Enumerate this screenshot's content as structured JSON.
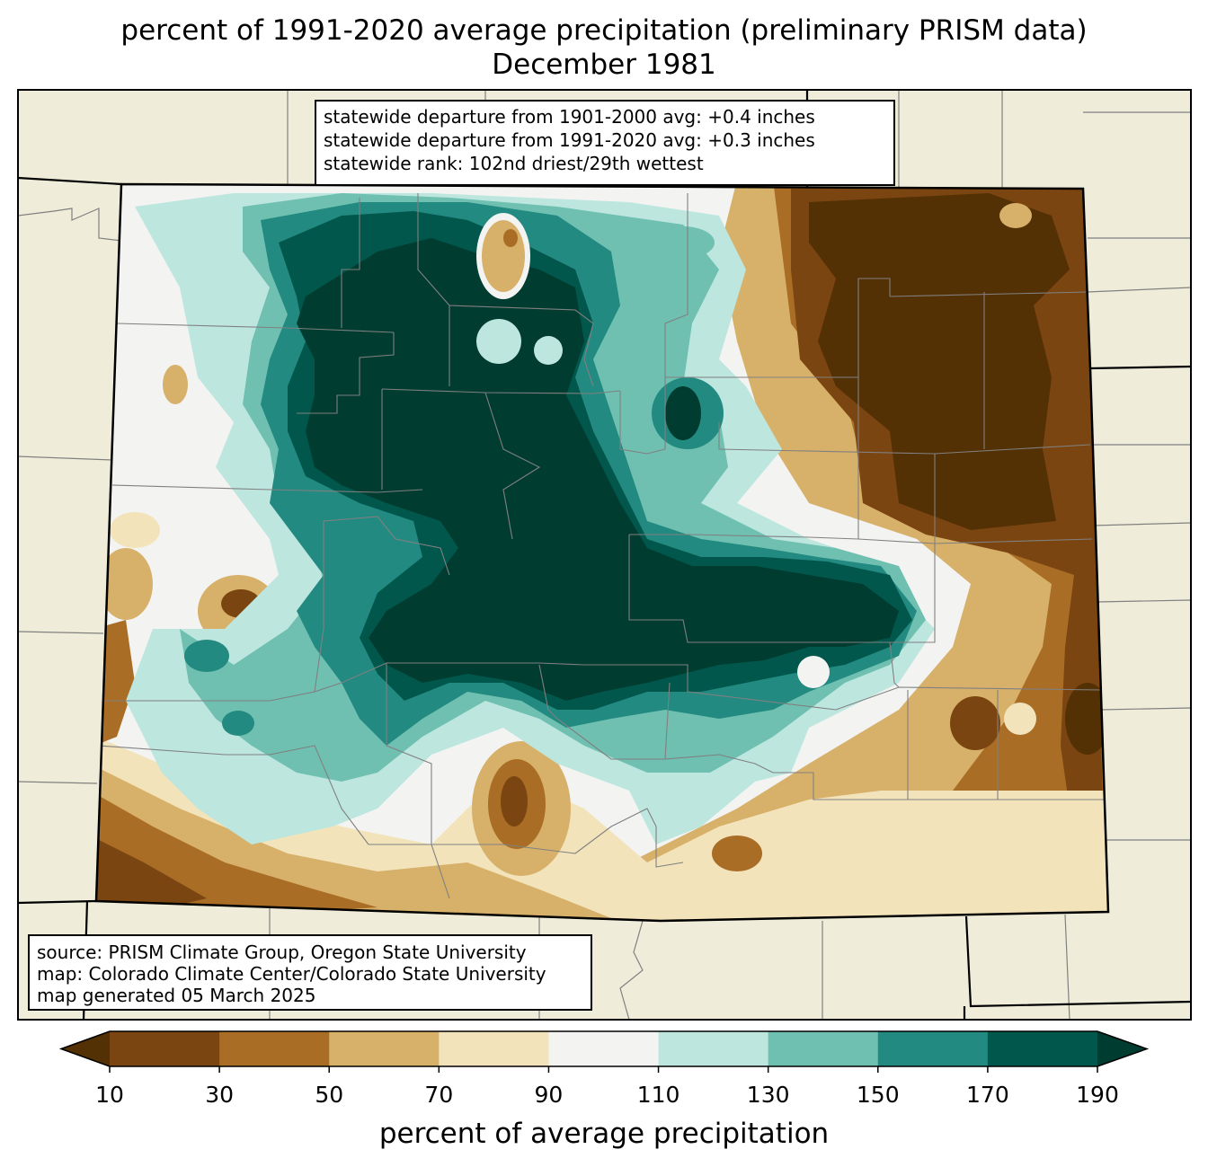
{
  "title": {
    "line1": "percent of 1991-2020 average precipitation (preliminary PRISM data)",
    "line2": "December 1981"
  },
  "stats": {
    "line1": "statewide departure from 1901-2000 avg: +0.4 inches",
    "line2": "statewide departure from 1991-2020 avg: +0.3 inches",
    "line3": "statewide rank: 102nd driest/29th wettest"
  },
  "source": {
    "line1": "source: PRISM Climate Group, Oregon State University",
    "line2": "map: Colorado Climate Center/Colorado State University",
    "line3": "map generated 05 March 2025"
  },
  "colorbar": {
    "label": "percent of average precipitation",
    "ticks": [
      "10",
      "30",
      "50",
      "70",
      "90",
      "110",
      "130",
      "150",
      "170",
      "190"
    ],
    "colors": [
      "#543005",
      "#7a4510",
      "#a96d26",
      "#d7b06a",
      "#f2e3bb",
      "#f3f4f2",
      "#bde6df",
      "#6fc0b1",
      "#228a80",
      "#01574c",
      "#003c30"
    ]
  },
  "map_colors": {
    "background": "#efedda",
    "state_border": "#000000",
    "county_border": "#808080"
  }
}
